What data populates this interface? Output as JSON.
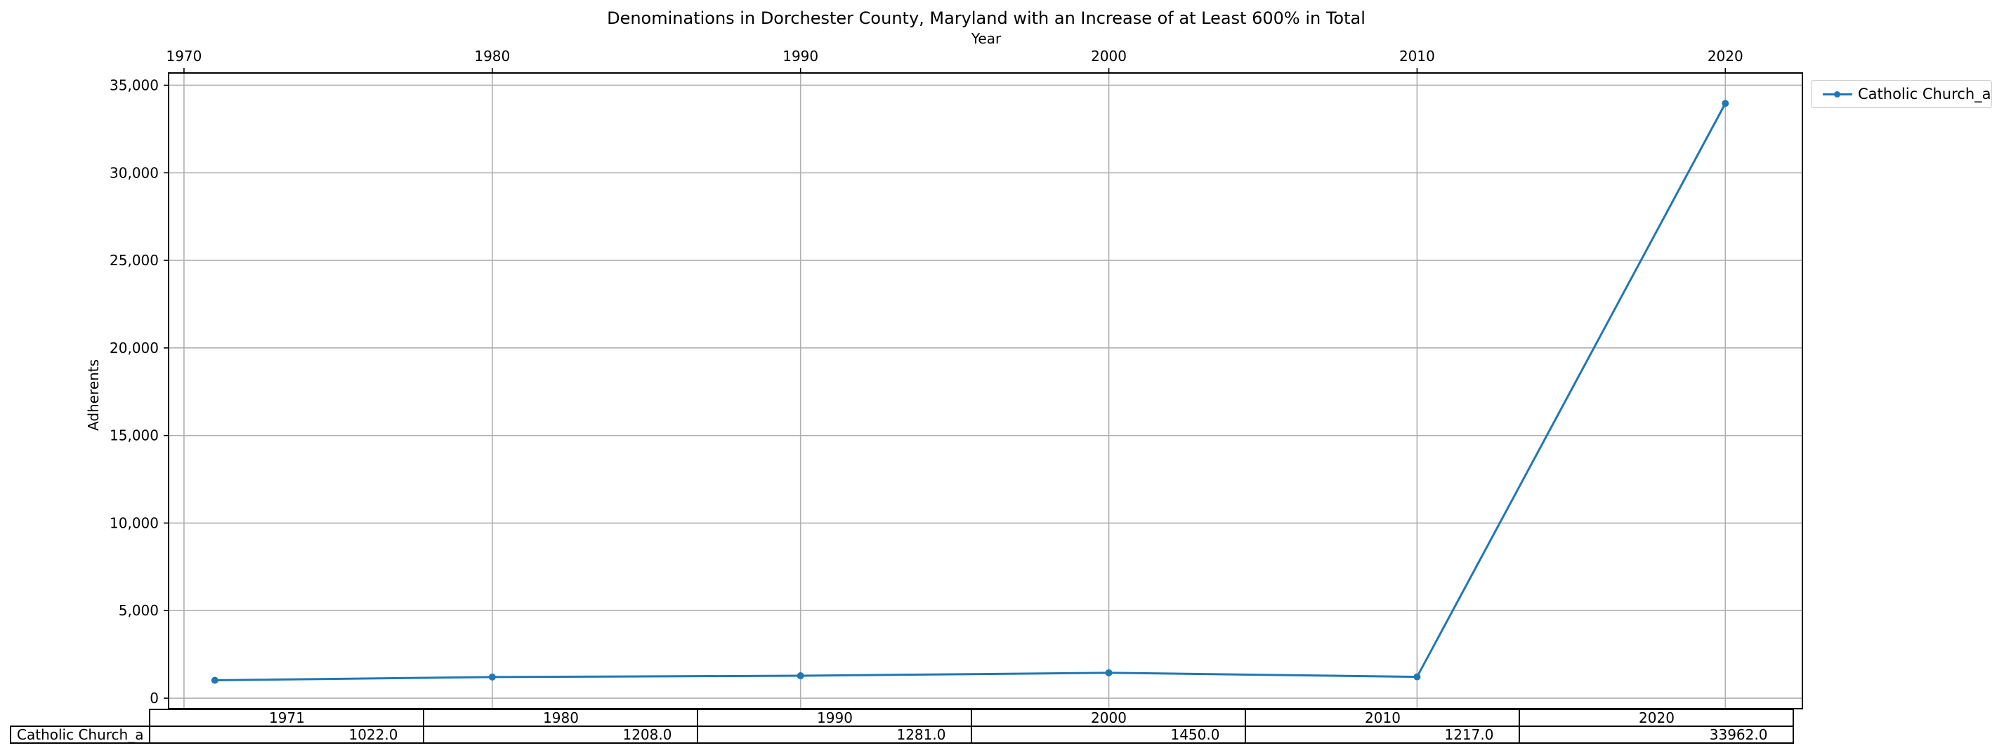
{
  "chart_data": {
    "type": "line",
    "title": "Denominations in Dorchester County, Maryland with an Increase of at Least 600% in Total",
    "xlabel": "Year",
    "ylabel": "Adherents",
    "x": [
      1971,
      1980,
      1990,
      2000,
      2010,
      2020
    ],
    "xticks": [
      "1970",
      "1980",
      "1990",
      "2000",
      "2010",
      "2020"
    ],
    "xlim": [
      1969.5,
      2022.5
    ],
    "yticks": [
      "0",
      "5,000",
      "10,000",
      "15,000",
      "20,000",
      "25,000",
      "30,000",
      "35,000"
    ],
    "ylim": [
      -600,
      35700
    ],
    "grid": true,
    "x_axis_position": "top",
    "legend_position": "outside top-right",
    "series": [
      {
        "name": "Catholic Church_a",
        "values": [
          1022,
          1208,
          1281,
          1450,
          1217,
          33962
        ],
        "color": "#1f77b4"
      }
    ]
  },
  "table": {
    "col_labels": [
      "1971",
      "1980",
      "1990",
      "2000",
      "2010",
      "2020"
    ],
    "row_label": "Catholic Church_a",
    "cells": [
      "1022.0",
      "1208.0",
      "1281.0",
      "1450.0",
      "1217.0",
      "33962.0"
    ]
  }
}
